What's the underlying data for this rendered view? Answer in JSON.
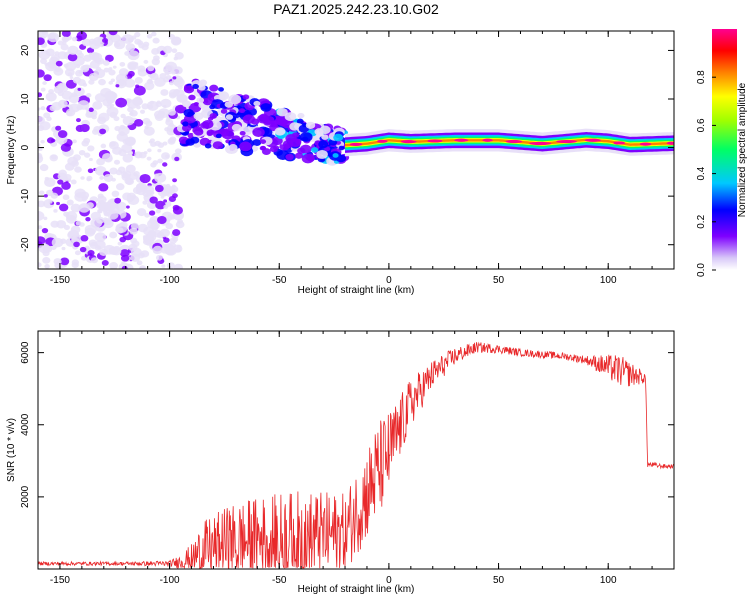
{
  "title": "PAZ1.2025.242.23.10.G02",
  "chart_data": [
    {
      "type": "heatmap",
      "name": "spectrogram",
      "xlabel": "Height of straight line (km)",
      "ylabel": "Frequency (Hz)",
      "xlim": [
        -160,
        130
      ],
      "ylim": [
        -25,
        24
      ],
      "xticks": [
        -150,
        -100,
        -50,
        0,
        50,
        100
      ],
      "yticks": [
        20,
        10,
        0,
        -10,
        -20
      ],
      "colorbar": {
        "label": "Normalized spectral amplitude",
        "range": [
          0,
          1
        ],
        "ticks": [
          "0.0",
          "0.2",
          "0.4",
          "0.6",
          "0.8"
        ],
        "colors": [
          "#e8e0f8",
          "#7e00ff",
          "#0000ff",
          "#00c8ff",
          "#00ff64",
          "#a0ff00",
          "#ffff00",
          "#ff8000",
          "#ff0000",
          "#ff0090"
        ]
      },
      "signal_track": {
        "x": [
          -20,
          -10,
          0,
          10,
          30,
          50,
          70,
          90,
          100,
          110,
          130
        ],
        "freq": [
          0.5,
          0.8,
          1.5,
          1.2,
          1.5,
          1.5,
          0.8,
          1.6,
          1.3,
          0.6,
          0.9
        ]
      },
      "noise_region": {
        "x_range": [
          -160,
          -95
        ],
        "freq_range": [
          -25,
          24
        ]
      },
      "scatter_region": {
        "x_range": [
          -95,
          -20
        ],
        "freq_center": [
          8,
          0
        ]
      }
    },
    {
      "type": "line",
      "name": "snr",
      "xlabel": "Height of straight line (km)",
      "ylabel": "SNR (10 * v/v)",
      "xlim": [
        -160,
        130
      ],
      "ylim": [
        0,
        6600
      ],
      "xticks": [
        -150,
        -100,
        -50,
        0,
        50,
        100
      ],
      "yticks": [
        2000,
        4000,
        6000
      ],
      "color": "#e8282a",
      "envelope": {
        "x": [
          -160,
          -120,
          -100,
          -95,
          -90,
          -85,
          -80,
          -75,
          -70,
          -60,
          -50,
          -40,
          -30,
          -20,
          -10,
          -5,
          0,
          5,
          10,
          20,
          30,
          40,
          50,
          60,
          70,
          80,
          90,
          100,
          105,
          110,
          117,
          118,
          125,
          130
        ],
        "mean": [
          150,
          150,
          150,
          200,
          300,
          500,
          600,
          700,
          750,
          800,
          850,
          900,
          950,
          1000,
          2100,
          2700,
          3200,
          3900,
          4600,
          5400,
          5900,
          6150,
          6100,
          6000,
          5950,
          5900,
          5800,
          5600,
          5500,
          5400,
          5300,
          2900,
          2850,
          2850
        ],
        "spread": [
          50,
          50,
          80,
          200,
          400,
          800,
          900,
          1000,
          1100,
          1200,
          1300,
          1300,
          1200,
          1100,
          1300,
          1400,
          1200,
          900,
          700,
          400,
          250,
          150,
          120,
          100,
          100,
          100,
          120,
          350,
          450,
          350,
          150,
          80,
          60,
          60
        ]
      }
    }
  ]
}
